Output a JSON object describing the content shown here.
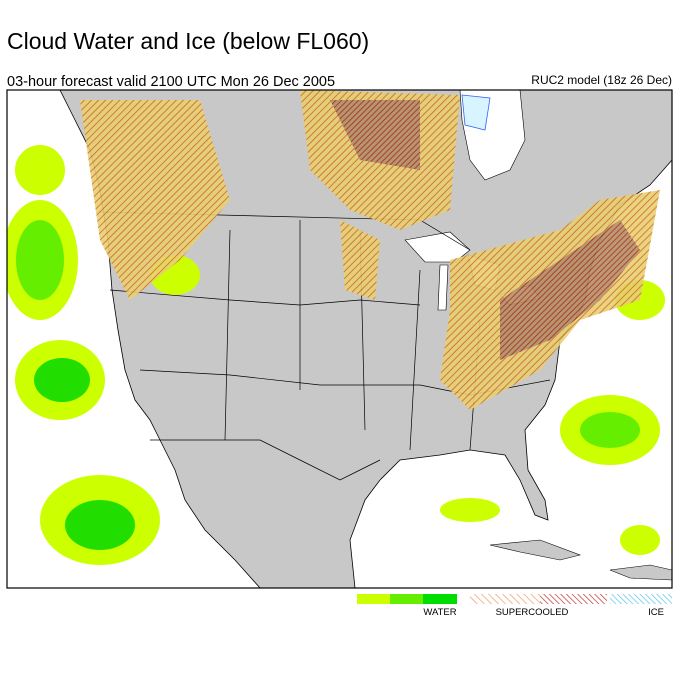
{
  "header": {
    "title": "Cloud Water and Ice (below FL060)",
    "subtitle": "03-hour forecast valid 2100 UTC Mon 26 Dec 2005",
    "model": "RUC2 model (18z 26 Dec)"
  },
  "legend": {
    "labels": [
      "WATER",
      "SUPERCOOLED",
      "ICE"
    ]
  }
}
